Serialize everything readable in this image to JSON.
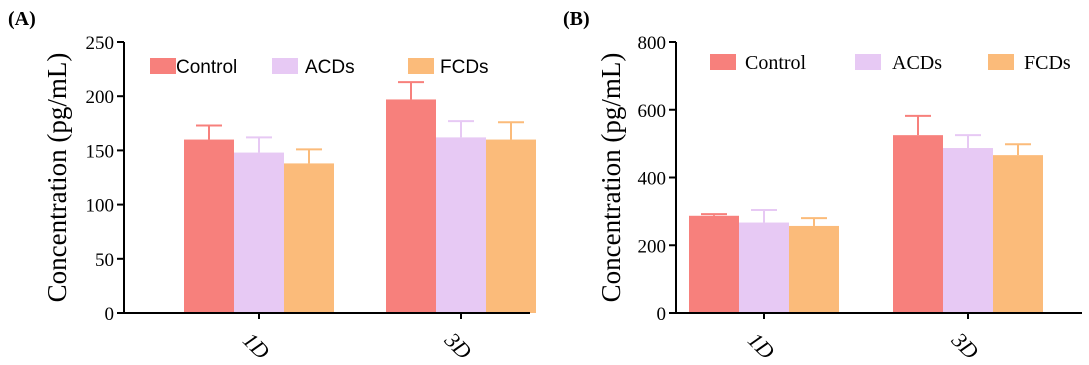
{
  "colors": {
    "Control": "#f7807c",
    "ACDs": "#e7c9f4",
    "FCDs": "#fbbb7a"
  },
  "chart_data": [
    {
      "type": "bar",
      "panel_label": "(A)",
      "ylabel": "Concentration (pg/mL)",
      "ylim": [
        0,
        250
      ],
      "yticks": [
        0,
        50,
        100,
        150,
        200,
        250
      ],
      "categories": [
        "1D",
        "3D"
      ],
      "legend": "top",
      "series": [
        {
          "name": "Control",
          "values": [
            160,
            197
          ],
          "errors": [
            13,
            16
          ]
        },
        {
          "name": "ACDs",
          "values": [
            148,
            162
          ],
          "errors": [
            14,
            15
          ]
        },
        {
          "name": "FCDs",
          "values": [
            138,
            160
          ],
          "errors": [
            13,
            16
          ]
        }
      ]
    },
    {
      "type": "bar",
      "panel_label": "(B)",
      "ylabel": "Concentration (pg/mL)",
      "ylim": [
        0,
        800
      ],
      "yticks": [
        0,
        200,
        400,
        600,
        800
      ],
      "categories": [
        "1D",
        "3D"
      ],
      "legend": "top",
      "series": [
        {
          "name": "Control",
          "values": [
            287,
            525
          ],
          "errors": [
            5,
            57
          ]
        },
        {
          "name": "ACDs",
          "values": [
            267,
            487
          ],
          "errors": [
            37,
            38
          ]
        },
        {
          "name": "FCDs",
          "values": [
            257,
            466
          ],
          "errors": [
            23,
            32
          ]
        }
      ]
    }
  ]
}
